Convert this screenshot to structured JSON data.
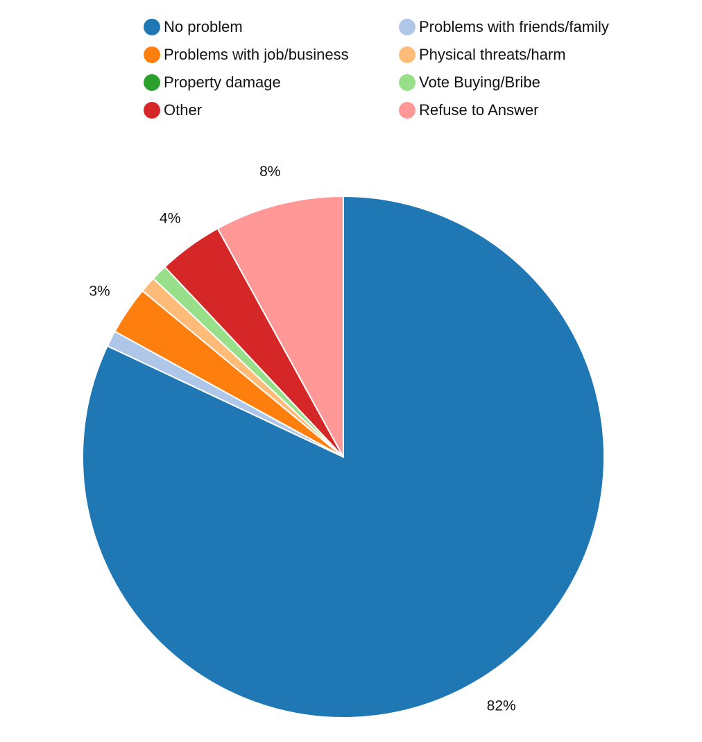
{
  "chart_data": {
    "type": "pie",
    "title": "",
    "categories": [
      "No problem",
      "Problems with friends/family",
      "Problems with job/business",
      "Physical threats/harm",
      "Property damage",
      "Vote Buying/Bribe",
      "Other",
      "Refuse to Answer"
    ],
    "values": [
      82,
      1,
      3,
      1,
      0,
      1,
      4,
      8
    ],
    "data_labels": [
      "82%",
      "",
      "3%",
      "",
      "",
      "",
      "4%",
      "8%"
    ],
    "colors": [
      "#1f77b4",
      "#aec7e8",
      "#ff7f0e",
      "#ffbb78",
      "#2ca02c",
      "#98df8a",
      "#d62728",
      "#ff9896"
    ],
    "legend_placement": "top",
    "start_angle": "12 o'clock",
    "direction": "clockwise"
  },
  "legend": {
    "items": [
      {
        "label": "No problem",
        "color": "#1f77b4"
      },
      {
        "label": "Problems with friends/family",
        "color": "#aec7e8"
      },
      {
        "label": "Problems with job/business",
        "color": "#ff7f0e"
      },
      {
        "label": "Physical threats/harm",
        "color": "#ffbb78"
      },
      {
        "label": "Property damage",
        "color": "#2ca02c"
      },
      {
        "label": "Vote Buying/Bribe",
        "color": "#98df8a"
      },
      {
        "label": "Other",
        "color": "#d62728"
      },
      {
        "label": "Refuse to Answer",
        "color": "#ff9896"
      }
    ]
  }
}
